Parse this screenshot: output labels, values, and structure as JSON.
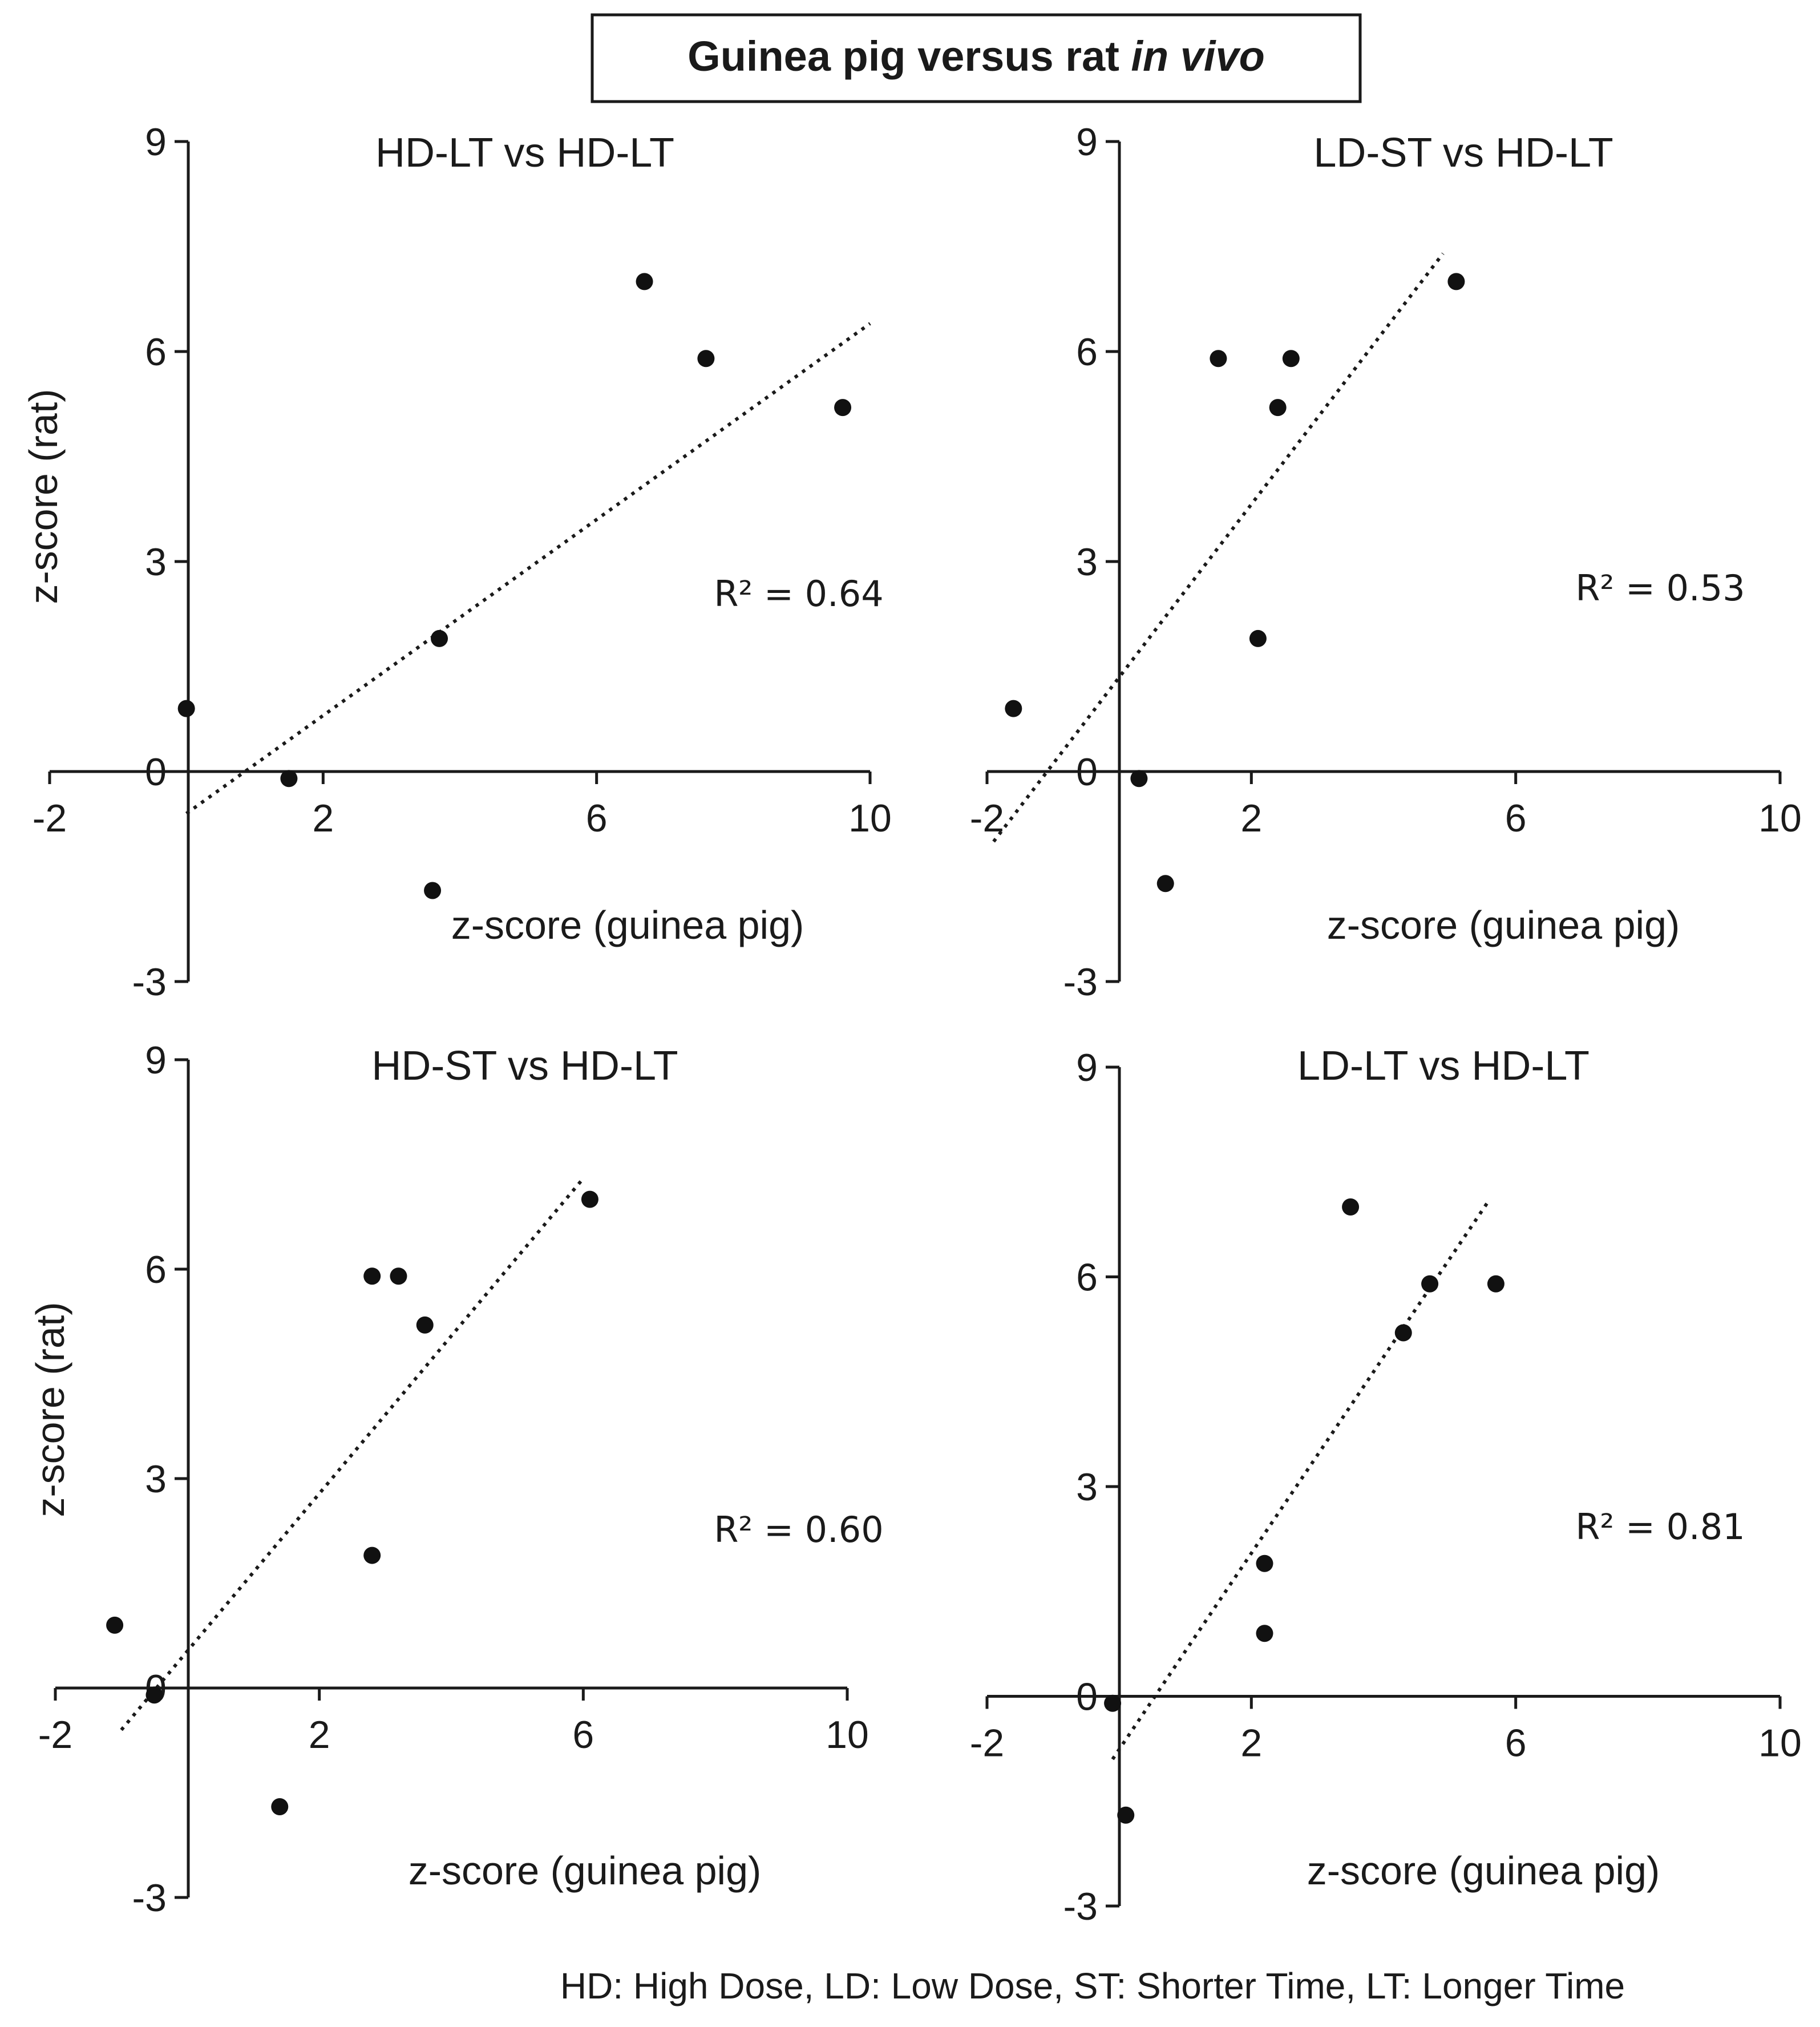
{
  "title": {
    "main": "Guinea pig versus rat ",
    "italic": "in vivo"
  },
  "footnote": "HD: High Dose, LD: Low Dose, ST: Shorter Time, LT: Longer Time",
  "colors": {
    "ink": "#1a1a1a",
    "marker": "#111111",
    "background": "#ffffff"
  },
  "chart_data": [
    {
      "type": "scatter",
      "title": "HD-LT vs HD-LT",
      "xlabel": "z-score (guinea pig)",
      "ylabel": "z-score (rat)",
      "xlim": [
        -2,
        10
      ],
      "ylim": [
        -3,
        9
      ],
      "xticks": [
        "-2",
        "2",
        "6",
        "10"
      ],
      "yticks": [
        "9",
        "6",
        "3",
        "0",
        "-3"
      ],
      "r2_label": "R² = 0.64",
      "points": [
        {
          "x": 0.0,
          "y": 0.9
        },
        {
          "x": 1.5,
          "y": -0.1
        },
        {
          "x": 3.6,
          "y": -1.7
        },
        {
          "x": 3.7,
          "y": 1.9
        },
        {
          "x": 6.7,
          "y": 7.0
        },
        {
          "x": 7.6,
          "y": 5.9
        },
        {
          "x": 9.6,
          "y": 5.2
        }
      ],
      "trendline": {
        "x": [
          0.0,
          10.0
        ],
        "y": [
          -0.6,
          6.4
        ]
      }
    },
    {
      "type": "scatter",
      "title": "LD-ST vs HD-LT",
      "xlabel": "z-score (guinea pig)",
      "ylabel": "",
      "xlim": [
        -2,
        10
      ],
      "ylim": [
        -3,
        9
      ],
      "xticks": [
        "-2",
        "2",
        "6",
        "10"
      ],
      "yticks": [
        "9",
        "6",
        "3",
        "0",
        "-3"
      ],
      "r2_label": "R² = 0.53",
      "points": [
        {
          "x": -1.6,
          "y": 0.9
        },
        {
          "x": 0.3,
          "y": -0.1
        },
        {
          "x": 0.7,
          "y": -1.6
        },
        {
          "x": 1.5,
          "y": 5.9
        },
        {
          "x": 2.1,
          "y": 1.9
        },
        {
          "x": 2.4,
          "y": 5.2
        },
        {
          "x": 2.6,
          "y": 5.9
        },
        {
          "x": 5.1,
          "y": 7.0
        }
      ],
      "trendline": {
        "x": [
          -1.9,
          4.9
        ],
        "y": [
          -1.0,
          7.4
        ]
      }
    },
    {
      "type": "scatter",
      "title": "HD-ST vs HD-LT",
      "xlabel": "z-score (guinea pig)",
      "ylabel": "z-score (rat)",
      "xlim": [
        -2,
        10
      ],
      "ylim": [
        -3,
        9
      ],
      "xticks": [
        "-2",
        "2",
        "6",
        "10"
      ],
      "yticks": [
        "9",
        "6",
        "3",
        "0",
        "-3"
      ],
      "r2_label": "R² = 0.60",
      "points": [
        {
          "x": -1.1,
          "y": 0.9
        },
        {
          "x": -0.5,
          "y": -0.1
        },
        {
          "x": 1.4,
          "y": -1.7
        },
        {
          "x": 2.8,
          "y": 5.9
        },
        {
          "x": 2.8,
          "y": 1.9
        },
        {
          "x": 3.2,
          "y": 5.9
        },
        {
          "x": 3.6,
          "y": 5.2
        },
        {
          "x": 6.1,
          "y": 7.0
        }
      ],
      "trendline": {
        "x": [
          -1.0,
          6.0
        ],
        "y": [
          -0.6,
          7.3
        ]
      }
    },
    {
      "type": "scatter",
      "title": "LD-LT vs HD-LT",
      "xlabel": "z-score (guinea pig)",
      "ylabel": "",
      "xlim": [
        -2,
        10
      ],
      "ylim": [
        -3,
        9
      ],
      "xticks": [
        "-2",
        "2",
        "6",
        "10"
      ],
      "yticks": [
        "9",
        "6",
        "3",
        "0",
        "-3"
      ],
      "r2_label": "R² = 0.81",
      "points": [
        {
          "x": -0.1,
          "y": -0.1
        },
        {
          "x": 0.1,
          "y": -1.7
        },
        {
          "x": 2.2,
          "y": 1.9
        },
        {
          "x": 2.2,
          "y": 0.9
        },
        {
          "x": 3.5,
          "y": 7.0
        },
        {
          "x": 4.3,
          "y": 5.2
        },
        {
          "x": 4.7,
          "y": 5.9
        },
        {
          "x": 5.7,
          "y": 5.9
        }
      ],
      "trendline": {
        "x": [
          -0.1,
          5.6
        ],
        "y": [
          -0.9,
          7.1
        ]
      }
    }
  ]
}
